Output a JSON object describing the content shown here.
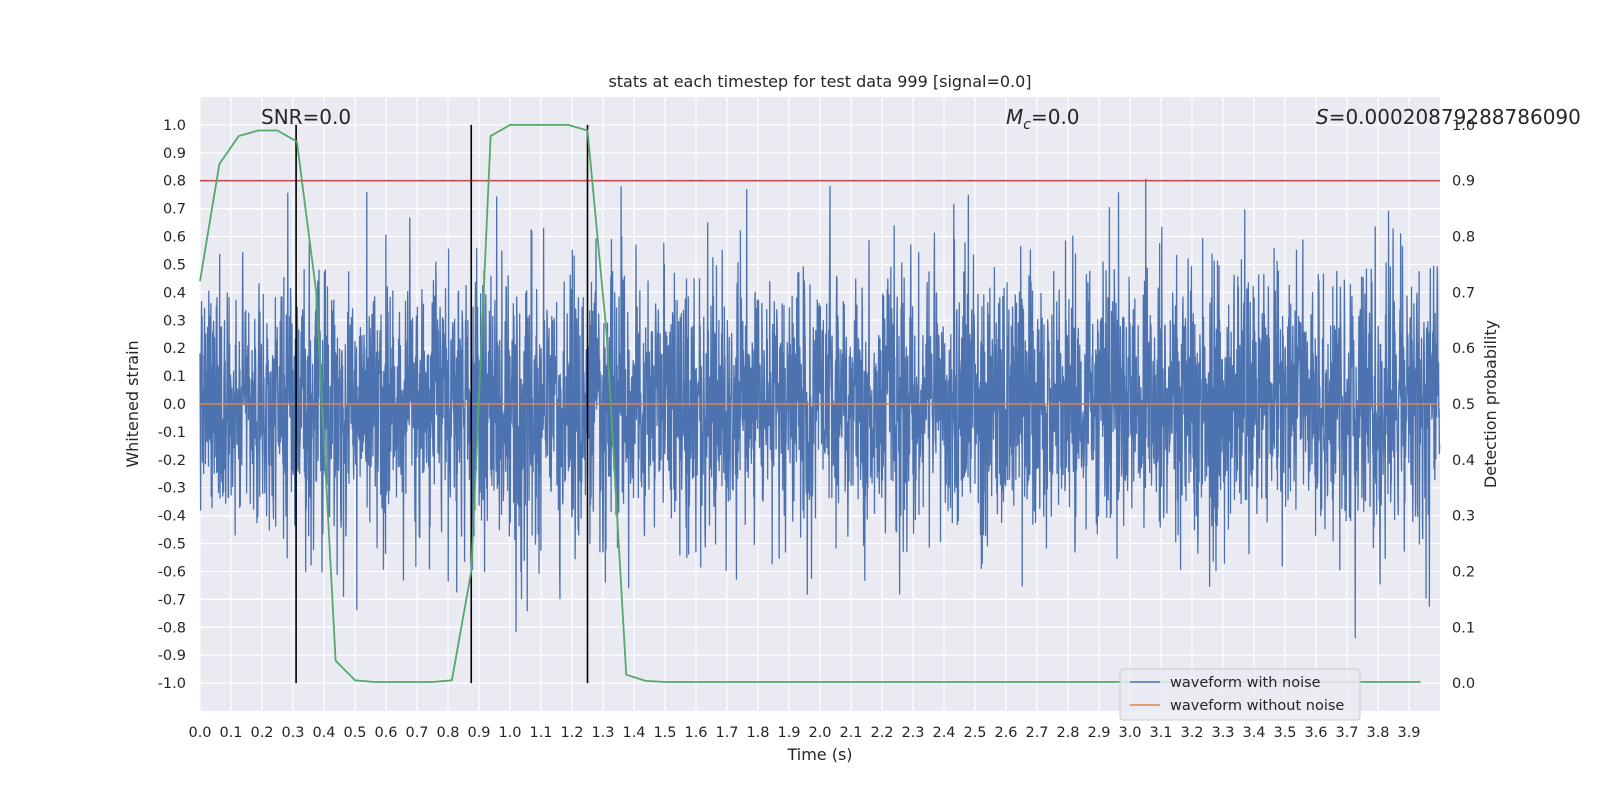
{
  "chart_data": {
    "type": "line",
    "title": "stats at each timestep for test data 999 [signal=0.0]",
    "xlabel": "Time (s)",
    "ylabel": "Whitened strain",
    "y2label": "Detection probability",
    "xlim": [
      0.0,
      4.0
    ],
    "ylim": [
      -1.1,
      1.1
    ],
    "y2lim": [
      -0.05,
      1.05
    ],
    "grid": true,
    "x_ticks": [
      "0.0",
      "0.1",
      "0.2",
      "0.3",
      "0.4",
      "0.5",
      "0.6",
      "0.7",
      "0.8",
      "0.9",
      "1.0",
      "1.1",
      "1.2",
      "1.3",
      "1.4",
      "1.5",
      "1.6",
      "1.7",
      "1.8",
      "1.9",
      "2.0",
      "2.1",
      "2.2",
      "2.3",
      "2.4",
      "2.5",
      "2.6",
      "2.7",
      "2.8",
      "2.9",
      "3.0",
      "3.1",
      "3.2",
      "3.3",
      "3.4",
      "3.5",
      "3.6",
      "3.7",
      "3.8",
      "3.9"
    ],
    "y_ticks": [
      "1.0",
      "0.9",
      "0.8",
      "0.7",
      "0.6",
      "0.5",
      "0.4",
      "0.3",
      "0.2",
      "0.1",
      "0.0",
      "-0.1",
      "-0.2",
      "-0.3",
      "-0.4",
      "-0.5",
      "-0.6",
      "-0.7",
      "-0.8",
      "-0.9",
      "-1.0"
    ],
    "y2_ticks": [
      "1.0",
      "0.9",
      "0.8",
      "0.7",
      "0.6",
      "0.5",
      "0.4",
      "0.3",
      "0.2",
      "0.1",
      "0.0"
    ],
    "annotations": {
      "snr": "SNR=0.0",
      "mc": "M",
      "mc_sub": "c",
      "mc_value": "=0.0",
      "s": "S",
      "s_value": "=0.00020879288786090"
    },
    "threshold": {
      "y2": 0.9,
      "color": "#c44e52"
    },
    "zero_line": {
      "y": 0.0,
      "color": "#dd8452"
    },
    "vertical_markers": [
      0.31,
      0.875,
      1.25
    ],
    "series": [
      {
        "name": "waveform with noise",
        "color": "#4c72b0",
        "samples": 4096,
        "seed": 999,
        "sigma": 0.24
      },
      {
        "name": "waveform without noise",
        "color": "#dd8452",
        "value": 0.0
      },
      {
        "name": "detection probability",
        "color": "#55a868",
        "axis": "y2",
        "x": [
          0.0,
          0.0625,
          0.125,
          0.1875,
          0.25,
          0.3125,
          0.375,
          0.4375,
          0.5,
          0.5625,
          0.625,
          0.6875,
          0.75,
          0.8125,
          0.875,
          0.9375,
          1.0,
          1.0625,
          1.125,
          1.1875,
          1.25,
          1.3125,
          1.375,
          1.4375,
          1.5,
          1.5625,
          1.625,
          1.6875,
          1.75,
          1.8125,
          1.875,
          1.9375,
          2.0,
          2.0625,
          2.125,
          2.1875,
          2.25,
          2.3125,
          2.375,
          2.4375,
          2.5,
          2.5625,
          2.625,
          2.6875,
          2.75,
          2.8125,
          2.875,
          2.9375,
          3.0,
          3.0625,
          3.125,
          3.1875,
          3.25,
          3.3125,
          3.375,
          3.4375,
          3.5,
          3.5625,
          3.625,
          3.6875,
          3.75,
          3.8125,
          3.875,
          3.9375
        ],
        "values": [
          0.72,
          0.93,
          0.98,
          0.99,
          0.99,
          0.97,
          0.7,
          0.04,
          0.005,
          0.002,
          0.002,
          0.002,
          0.002,
          0.005,
          0.2,
          0.98,
          1.0,
          1.0,
          1.0,
          1.0,
          0.99,
          0.62,
          0.015,
          0.004,
          0.002,
          0.002,
          0.002,
          0.002,
          0.002,
          0.002,
          0.002,
          0.002,
          0.002,
          0.002,
          0.002,
          0.002,
          0.002,
          0.002,
          0.002,
          0.002,
          0.002,
          0.002,
          0.002,
          0.002,
          0.002,
          0.002,
          0.002,
          0.002,
          0.002,
          0.002,
          0.002,
          0.002,
          0.002,
          0.002,
          0.002,
          0.002,
          0.002,
          0.002,
          0.002,
          0.002,
          0.002,
          0.002,
          0.002,
          0.002
        ]
      }
    ],
    "legend": {
      "placement": "bottom-right",
      "entries": [
        {
          "label": "waveform with noise",
          "color": "#4c72b0"
        },
        {
          "label": "waveform without noise",
          "color": "#dd8452"
        }
      ]
    }
  }
}
